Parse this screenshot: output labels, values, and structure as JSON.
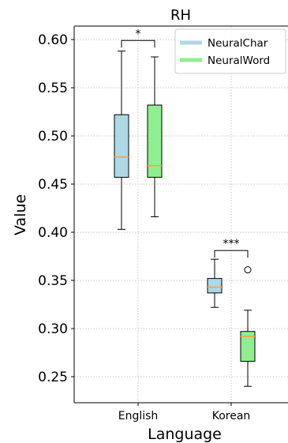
{
  "chart_data": {
    "type": "box",
    "title": "RH",
    "xlabel": "Language",
    "ylabel": "Value",
    "categories": [
      "English",
      "Korean"
    ],
    "ylim": [
      0.223,
      0.614
    ],
    "yticks": [
      0.25,
      0.3,
      0.35,
      0.4,
      0.45,
      0.5,
      0.55,
      0.6
    ],
    "ytick_labels": [
      "0.25",
      "0.30",
      "0.35",
      "0.40",
      "0.45",
      "0.50",
      "0.55",
      "0.60"
    ],
    "grid": true,
    "legend_position": "top-right",
    "series": [
      {
        "name": "NeuralChar",
        "color": "#add8e6",
        "boxes": [
          {
            "category": "English",
            "whisker_low": 0.403,
            "q1": 0.457,
            "median": 0.478,
            "q3": 0.522,
            "whisker_high": 0.588,
            "outliers": []
          },
          {
            "category": "Korean",
            "whisker_low": 0.322,
            "q1": 0.337,
            "median": 0.343,
            "q3": 0.352,
            "whisker_high": 0.372,
            "outliers": []
          }
        ]
      },
      {
        "name": "NeuralWord",
        "color": "#90ee90",
        "boxes": [
          {
            "category": "English",
            "whisker_low": 0.416,
            "q1": 0.457,
            "median": 0.469,
            "q3": 0.532,
            "whisker_high": 0.582,
            "outliers": []
          },
          {
            "category": "Korean",
            "whisker_low": 0.24,
            "q1": 0.266,
            "median": 0.292,
            "q3": 0.297,
            "whisker_high": 0.319,
            "outliers": [
              0.361
            ]
          }
        ]
      }
    ],
    "median_color": "#ff9f40",
    "significance": [
      {
        "category": "English",
        "label": "*",
        "bracket_y": 0.599
      },
      {
        "category": "Korean",
        "label": "***",
        "bracket_y": 0.381
      }
    ]
  }
}
